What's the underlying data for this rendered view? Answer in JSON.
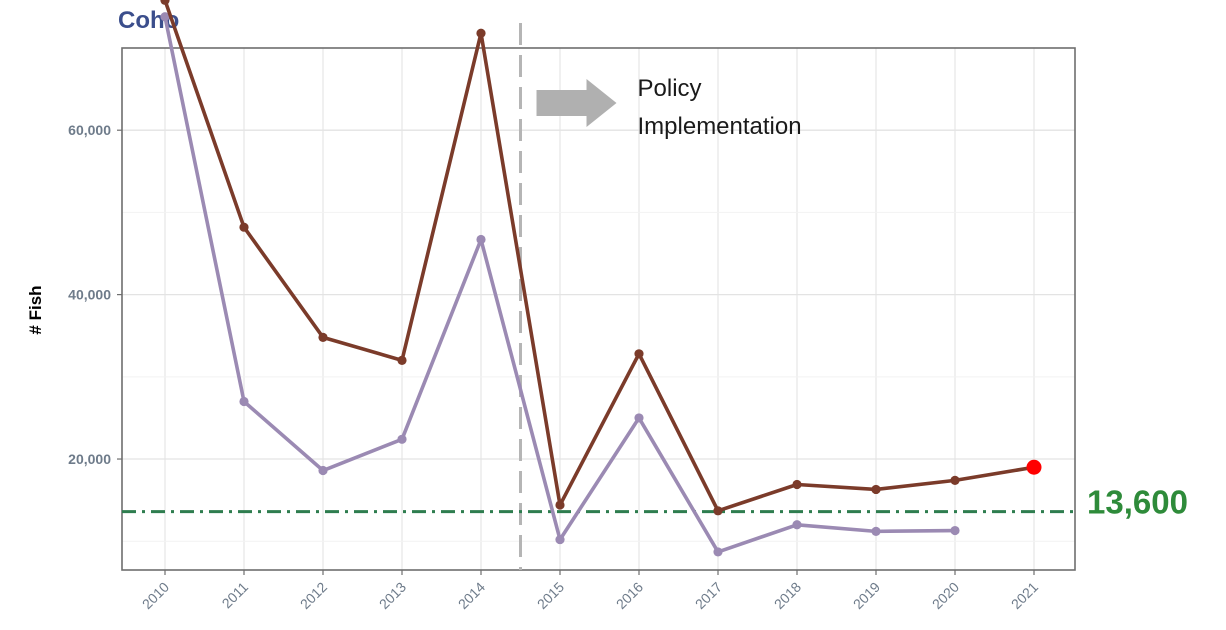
{
  "chart_data": {
    "type": "line",
    "title": "Coho",
    "subtitle": "",
    "xlabel": "",
    "ylabel": "# Fish",
    "categories": [
      "2010",
      "2011",
      "2012",
      "2013",
      "2014",
      "2015",
      "2016",
      "2017",
      "2018",
      "2019",
      "2020",
      "2021"
    ],
    "y_ticks": [
      20000,
      40000,
      60000
    ],
    "y_tick_labels": [
      "20,000",
      "40,000",
      "60,000"
    ],
    "ylim": [
      6500,
      70000
    ],
    "grid": true,
    "legend": "none",
    "series": [
      {
        "color": "#7B3B2A",
        "values": [
          75800,
          48200,
          34800,
          32000,
          71800,
          14400,
          32800,
          13700,
          16900,
          16300,
          17400,
          19000
        ]
      },
      {
        "color": "#9B8AB3",
        "values": [
          73800,
          27000,
          18600,
          22400,
          46700,
          10200,
          25000,
          8700,
          12000,
          11200,
          11300,
          null
        ]
      }
    ],
    "highlight_point": {
      "category": "2021",
      "value": 19000,
      "color": "#FF0000"
    },
    "reference_line": {
      "value": 13600,
      "label": "13,600",
      "color": "#2E7D4F",
      "label_color": "#2E8B3A"
    },
    "policy_marker": {
      "x_position": 2014.5,
      "text_line1": "Policy",
      "text_line2": "Implementation",
      "line_color": "#B5B5B5",
      "arrow_color": "#B0B0B0"
    },
    "title_color": "#3B4E8C",
    "tick_label_color": "#6E7B8A"
  }
}
